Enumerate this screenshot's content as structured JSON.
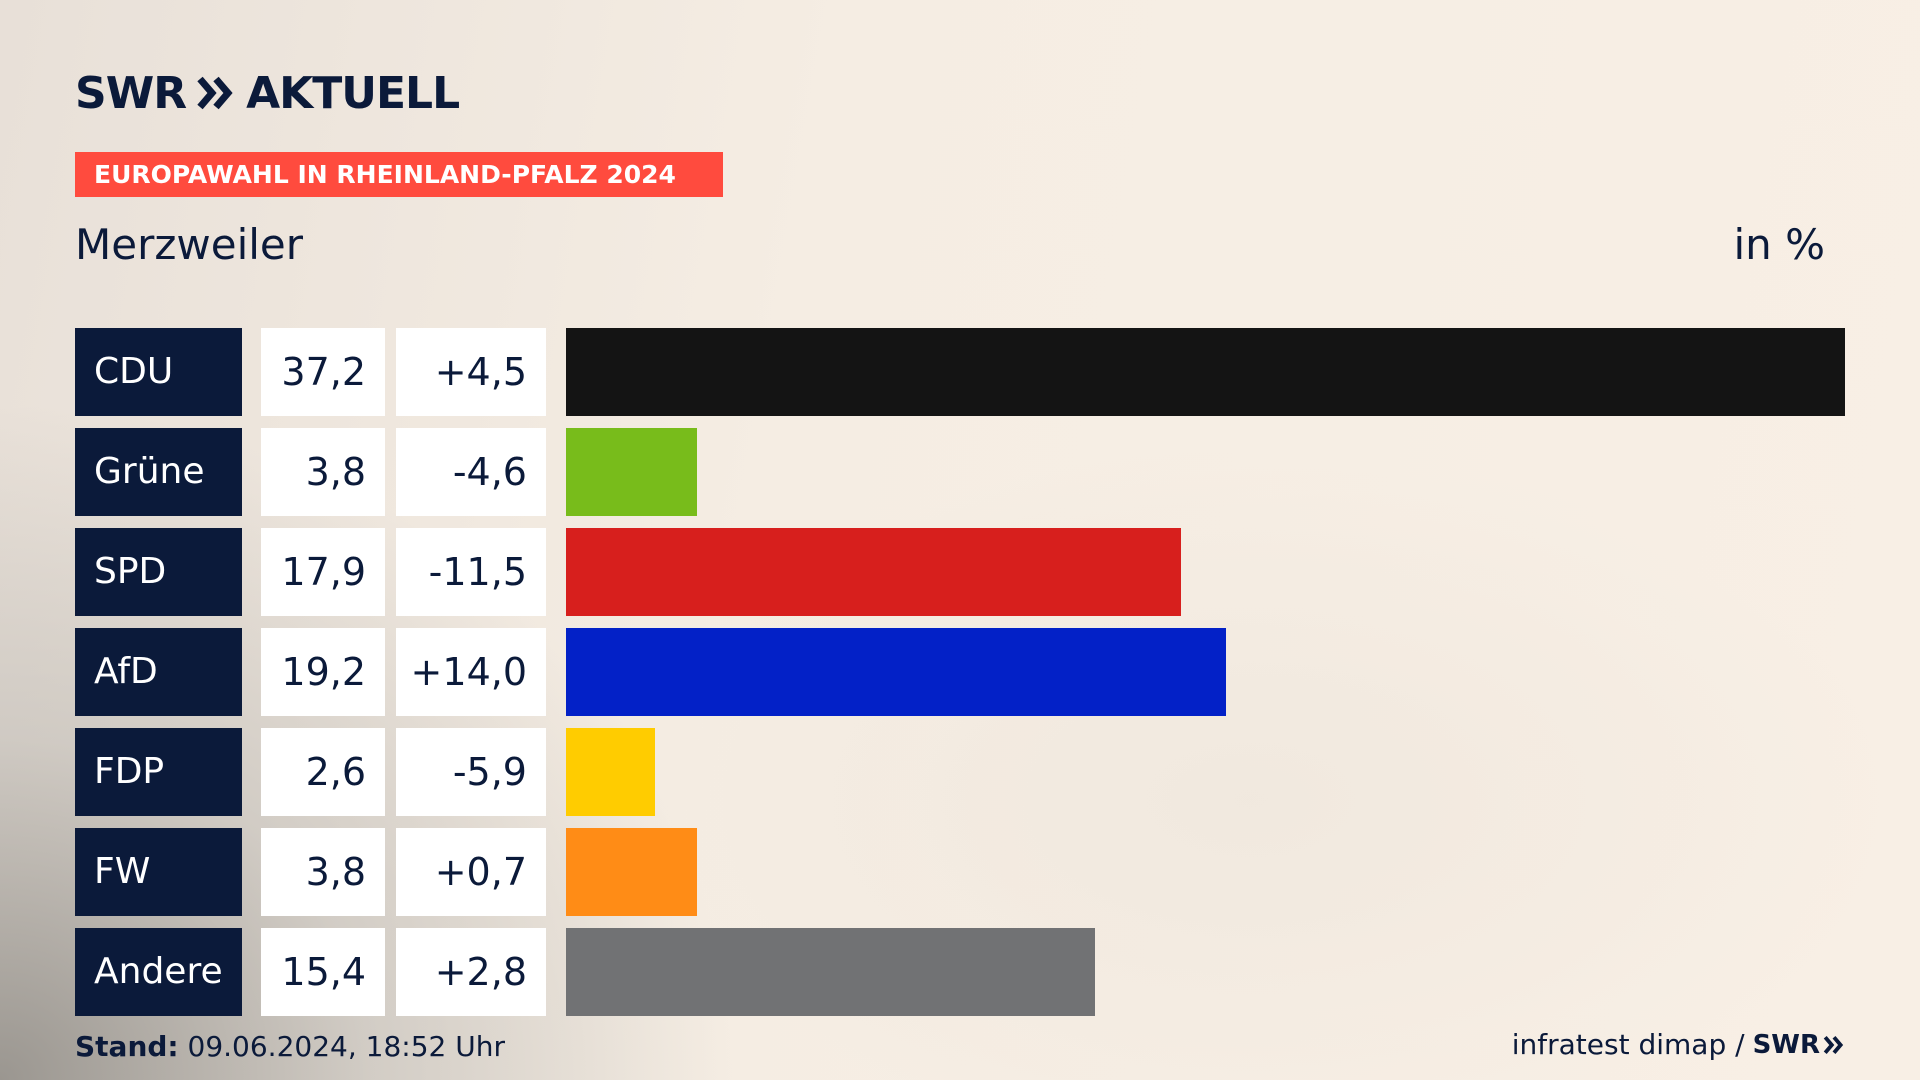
{
  "brand": {
    "name_part1": "SWR",
    "name_part2": "AKTUELL"
  },
  "badge": "EUROPAWAHL IN RHEINLAND-PFALZ 2024",
  "region": "Merzweiler",
  "unit": "in %",
  "colors": {
    "navy": "#0b1a3a",
    "badge": "#ff4b3e"
  },
  "chart_data": {
    "type": "bar",
    "orientation": "horizontal",
    "categories": [
      "CDU",
      "Grüne",
      "SPD",
      "AfD",
      "FDP",
      "FW",
      "Andere"
    ],
    "values": [
      37.2,
      3.8,
      17.9,
      19.2,
      2.6,
      3.8,
      15.4
    ],
    "value_labels": [
      "37,2",
      "3,8",
      "17,9",
      "19,2",
      "2,6",
      "3,8",
      "15,4"
    ],
    "changes": [
      4.5,
      -4.6,
      -11.5,
      14.0,
      -5.9,
      0.7,
      2.8
    ],
    "change_labels": [
      "+4,5",
      "-4,6",
      "-11,5",
      "+14,0",
      "-5,9",
      "+0,7",
      "+2,8"
    ],
    "colors": [
      "#141414",
      "#78bc1b",
      "#d71f1d",
      "#0321c7",
      "#ffcc00",
      "#ff8c16",
      "#717274"
    ],
    "xlim": [
      0,
      37.2
    ],
    "grid": false,
    "legend": "none"
  },
  "footer": {
    "stand_label": "Stand:",
    "stand_value": " 09.06.2024, 18:52 Uhr",
    "source_text": "infratest dimap /",
    "source_logo": "SWR"
  }
}
